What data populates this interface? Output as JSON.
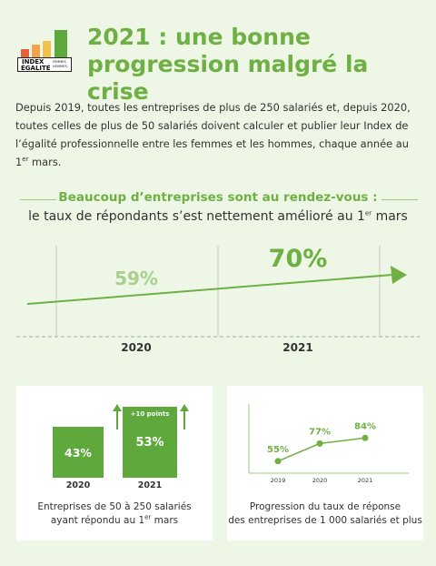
{
  "logo": {
    "line1": "INDEX",
    "line2": "ÉGALITÉ",
    "line3": "FEMMES HOMMES"
  },
  "title": "2021 : une bonne progression malgré la crise",
  "intro": {
    "text": "Depuis 2019, toutes les entreprises de plus de 250 salariés et, depuis 2020, toutes celles de plus de 50 salariés doivent calculer et publier leur Index de l’égalité professionnelle entre les femmes et les hommes, chaque année au 1",
    "sup": "er",
    "end": " mars."
  },
  "subtitle": {
    "line1": "Beaucoup d’entreprises sont au rendez-vous :",
    "line2": "le taux de répondants s’est nettement amélioré au 1",
    "line2_sup": "er",
    "line2_end": " mars"
  },
  "colors": {
    "green": "#6eb043",
    "light_green": "#a9d08e",
    "bar_green": "#5ea83c",
    "background": "#eef6e6"
  },
  "chart_data": [
    {
      "type": "line",
      "categories": [
        "2020",
        "2021"
      ],
      "values": [
        59,
        70
      ],
      "value_labels": [
        "59%",
        "70%"
      ],
      "title": "",
      "xlabel": "",
      "ylabel": ""
    },
    {
      "type": "bar",
      "categories": [
        "2020",
        "2021"
      ],
      "values": [
        43,
        53
      ],
      "value_labels": [
        "43%",
        "53%"
      ],
      "annotation": "+10 points",
      "caption_line1": "Entreprises de 50 à 250 salariés",
      "caption_line2": "ayant répondu au 1",
      "caption_sup": "er",
      "caption_end": " mars"
    },
    {
      "type": "line",
      "categories": [
        "2019",
        "2020",
        "2021"
      ],
      "values": [
        55,
        77,
        84
      ],
      "value_labels": [
        "55%",
        "77%",
        "84%"
      ],
      "caption_line1": "Progression du taux de réponse",
      "caption_line2": "des entreprises de 1 000 salariés et plus"
    }
  ]
}
